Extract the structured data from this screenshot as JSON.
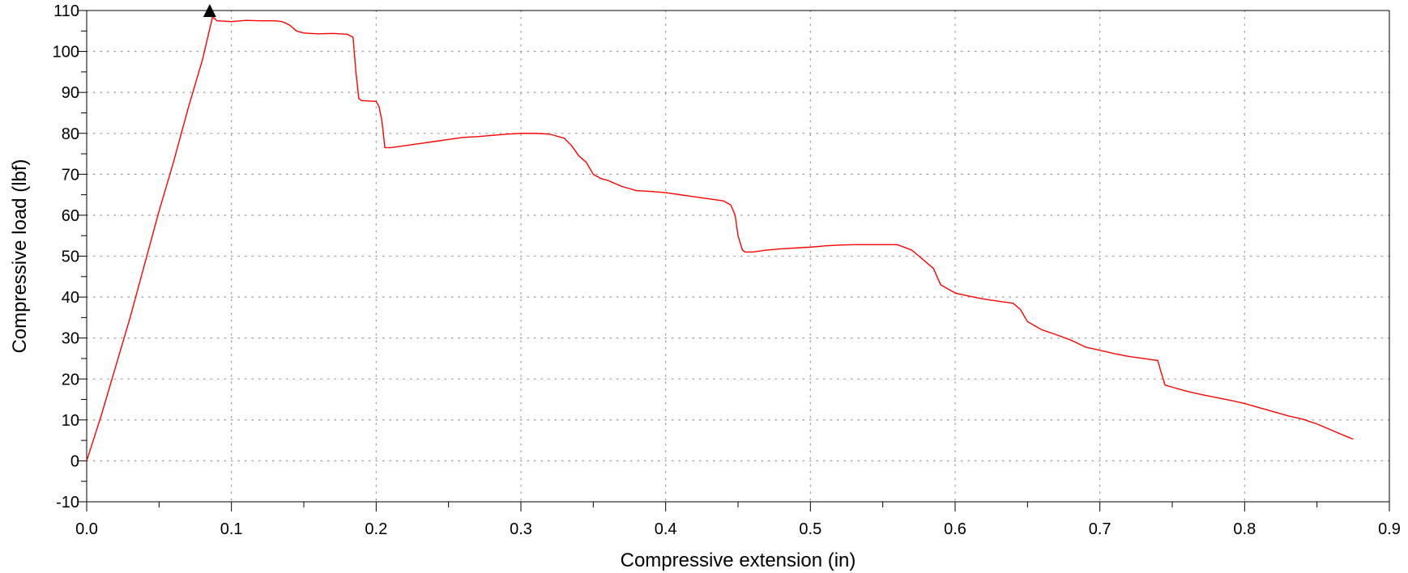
{
  "chart_data": {
    "type": "line",
    "title": "",
    "xlabel": "Compressive extension (in)",
    "ylabel": "Compressive load (lbf)",
    "xlim": [
      0.0,
      0.9
    ],
    "ylim": [
      -10,
      110
    ],
    "xticks": [
      0.0,
      0.1,
      0.2,
      0.3,
      0.4,
      0.5,
      0.6,
      0.7,
      0.8,
      0.9
    ],
    "xtick_labels": [
      "0.0",
      "0.1",
      "0.2",
      "0.3",
      "0.4",
      "0.5",
      "0.6",
      "0.7",
      "0.8",
      "0.9"
    ],
    "yticks": [
      -10,
      0,
      10,
      20,
      30,
      40,
      50,
      60,
      70,
      80,
      90,
      100,
      110
    ],
    "ytick_labels": [
      "-10",
      "0",
      "10",
      "20",
      "30",
      "40",
      "50",
      "60",
      "70",
      "80",
      "90",
      "100",
      "110"
    ],
    "grid": true,
    "legend": "none",
    "colors": {
      "series": "#ff0000",
      "marker": "#000000",
      "grid": "#a0a0a0",
      "axis": "#000000"
    },
    "series": [
      {
        "x": [
          0.0,
          0.01,
          0.02,
          0.03,
          0.04,
          0.05,
          0.06,
          0.07,
          0.08,
          0.087,
          0.09,
          0.1,
          0.11,
          0.12,
          0.13,
          0.135,
          0.14,
          0.145,
          0.15,
          0.16,
          0.17,
          0.18,
          0.184,
          0.186,
          0.188,
          0.19,
          0.2,
          0.202,
          0.204,
          0.206,
          0.21,
          0.22,
          0.23,
          0.24,
          0.25,
          0.26,
          0.27,
          0.28,
          0.29,
          0.3,
          0.31,
          0.32,
          0.33,
          0.335,
          0.34,
          0.345,
          0.35,
          0.355,
          0.36,
          0.37,
          0.38,
          0.39,
          0.4,
          0.41,
          0.42,
          0.43,
          0.44,
          0.445,
          0.448,
          0.45,
          0.453,
          0.455,
          0.46,
          0.47,
          0.48,
          0.49,
          0.5,
          0.51,
          0.52,
          0.53,
          0.54,
          0.55,
          0.56,
          0.57,
          0.575,
          0.58,
          0.585,
          0.59,
          0.595,
          0.6,
          0.61,
          0.62,
          0.63,
          0.64,
          0.645,
          0.65,
          0.655,
          0.66,
          0.67,
          0.68,
          0.69,
          0.7,
          0.71,
          0.72,
          0.73,
          0.74,
          0.742,
          0.745,
          0.75,
          0.76,
          0.77,
          0.78,
          0.79,
          0.8,
          0.81,
          0.82,
          0.83,
          0.84,
          0.85,
          0.86,
          0.87,
          0.875
        ],
        "y": [
          0,
          11,
          23,
          35,
          48,
          61,
          73,
          86,
          98,
          108.5,
          107.5,
          107.3,
          107.6,
          107.5,
          107.5,
          107.3,
          106.5,
          105,
          104.5,
          104.3,
          104.4,
          104.2,
          103.5,
          95,
          88.5,
          88,
          87.8,
          86.5,
          83,
          76.5,
          76.5,
          77,
          77.5,
          78,
          78.5,
          79,
          79.2,
          79.5,
          79.8,
          80,
          80,
          79.8,
          78.8,
          77,
          74.5,
          73,
          70,
          69,
          68.5,
          67,
          66,
          65.8,
          65.5,
          65,
          64.5,
          64,
          63.5,
          62.5,
          60,
          55,
          51.5,
          51,
          51,
          51.5,
          51.8,
          52,
          52.2,
          52.5,
          52.7,
          52.8,
          52.8,
          52.8,
          52.8,
          51.5,
          50,
          48.5,
          47,
          43,
          42,
          41,
          40.2,
          39.5,
          39,
          38.5,
          37,
          34,
          33,
          32,
          30.8,
          29.5,
          27.8,
          27,
          26.2,
          25.5,
          25,
          24.5,
          22,
          18.5,
          18,
          17,
          16.2,
          15.5,
          14.8,
          14,
          13,
          12,
          11,
          10.2,
          9,
          7.5,
          6,
          5.3
        ]
      }
    ],
    "annotations": [
      {
        "type": "marker",
        "shape": "triangle-up",
        "x": 0.085,
        "y": 110
      }
    ]
  }
}
